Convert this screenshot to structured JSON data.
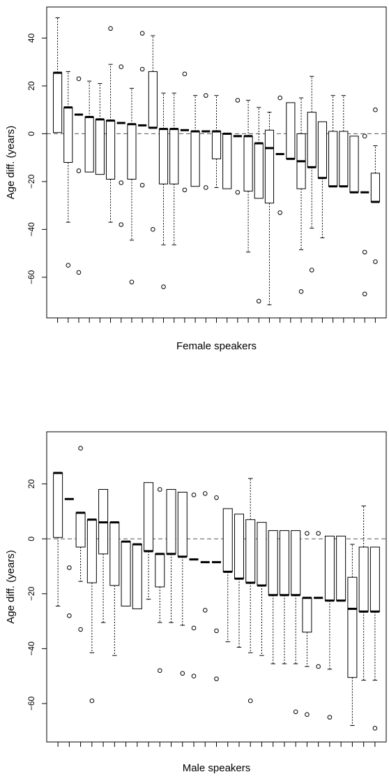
{
  "chart_data": [
    {
      "type": "boxplot",
      "xlabel": "Female speakers",
      "ylabel": "Age diff. (years)",
      "ylim": [
        -77,
        53
      ],
      "yticks": [
        -60,
        -40,
        -20,
        0,
        20,
        40
      ],
      "reference_line": 0,
      "grid": false,
      "boxes": [
        {
          "q1": 0.5,
          "median": 25.5,
          "q3": 25.5,
          "whisker_low": 0.5,
          "whisker_high": 48.5,
          "outliers": []
        },
        {
          "q1": -12,
          "median": 11,
          "q3": 11,
          "whisker_low": -37,
          "whisker_high": 26,
          "outliers": [
            -55
          ]
        },
        {
          "q1": 8,
          "median": 8,
          "q3": 8,
          "whisker_low": 8,
          "whisker_high": 8,
          "outliers": [
            23,
            -15.5,
            -58
          ]
        },
        {
          "q1": -16,
          "median": 7,
          "q3": 7,
          "whisker_low": -16,
          "whisker_high": 22,
          "outliers": []
        },
        {
          "q1": -17,
          "median": 6,
          "q3": 6,
          "whisker_low": -17,
          "whisker_high": 21,
          "outliers": []
        },
        {
          "q1": -19,
          "median": 5.5,
          "q3": 5.5,
          "whisker_low": -37,
          "whisker_high": 29,
          "outliers": [
            44
          ]
        },
        {
          "q1": 4.5,
          "median": 4.5,
          "q3": 4.5,
          "whisker_low": 4.5,
          "whisker_high": 4.5,
          "outliers": [
            28,
            -20.5,
            -38
          ]
        },
        {
          "q1": -19,
          "median": 4,
          "q3": 4,
          "whisker_low": -44.5,
          "whisker_high": 19,
          "outliers": [
            -62
          ]
        },
        {
          "q1": 3.5,
          "median": 3.5,
          "q3": 3.5,
          "whisker_low": 3.5,
          "whisker_high": 3.5,
          "outliers": [
            42,
            27,
            -21.5
          ]
        },
        {
          "q1": 2.5,
          "median": 2.5,
          "q3": 26,
          "whisker_low": 2.5,
          "whisker_high": 41,
          "outliers": [
            -40
          ]
        },
        {
          "q1": -21,
          "median": 2,
          "q3": 2,
          "whisker_low": -46.5,
          "whisker_high": 17,
          "outliers": [
            -64
          ]
        },
        {
          "q1": -21,
          "median": 2,
          "q3": 2,
          "whisker_low": -46.5,
          "whisker_high": 17,
          "outliers": []
        },
        {
          "q1": 1.5,
          "median": 1.5,
          "q3": 1.5,
          "whisker_low": 1.5,
          "whisker_high": 1.5,
          "outliers": [
            25,
            -23.5
          ]
        },
        {
          "q1": -22,
          "median": 1,
          "q3": 1,
          "whisker_low": -22,
          "whisker_high": 16,
          "outliers": []
        },
        {
          "q1": 1,
          "median": 1,
          "q3": 1,
          "whisker_low": 1,
          "whisker_high": 1,
          "outliers": [
            16,
            -22.5
          ]
        },
        {
          "q1": -10.5,
          "median": 1,
          "q3": 1,
          "whisker_low": -22.5,
          "whisker_high": 16,
          "outliers": []
        },
        {
          "q1": -23,
          "median": 0,
          "q3": 0,
          "whisker_low": -23,
          "whisker_high": 0,
          "outliers": []
        },
        {
          "q1": -1,
          "median": -1,
          "q3": -1,
          "whisker_low": -1,
          "whisker_high": -1,
          "outliers": [
            14,
            -24.5
          ]
        },
        {
          "q1": -24,
          "median": -1,
          "q3": -1,
          "whisker_low": -49.5,
          "whisker_high": 14,
          "outliers": []
        },
        {
          "q1": -27,
          "median": -4,
          "q3": -4,
          "whisker_low": -27,
          "whisker_high": 11,
          "outliers": [
            -70
          ]
        },
        {
          "q1": -29,
          "median": -6,
          "q3": 1.5,
          "whisker_low": -71.5,
          "whisker_high": 9,
          "outliers": []
        },
        {
          "q1": -8.5,
          "median": -8.5,
          "q3": -8.5,
          "whisker_low": -8.5,
          "whisker_high": -8.5,
          "outliers": [
            15,
            -33
          ]
        },
        {
          "q1": -10.5,
          "median": -10.5,
          "q3": 13,
          "whisker_low": -10.5,
          "whisker_high": 13,
          "outliers": []
        },
        {
          "q1": -23,
          "median": -11.5,
          "q3": 0,
          "whisker_low": -48.5,
          "whisker_high": 15,
          "outliers": [
            -66
          ]
        },
        {
          "q1": -14,
          "median": -14,
          "q3": 9,
          "whisker_low": -39.5,
          "whisker_high": 24,
          "outliers": [
            -57
          ]
        },
        {
          "q1": -18.5,
          "median": -18.5,
          "q3": 5,
          "whisker_low": -43.5,
          "whisker_high": 5,
          "outliers": []
        },
        {
          "q1": -22,
          "median": -22,
          "q3": 1,
          "whisker_low": -22,
          "whisker_high": 16,
          "outliers": []
        },
        {
          "q1": -22,
          "median": -22,
          "q3": 1,
          "whisker_low": -22,
          "whisker_high": 16,
          "outliers": []
        },
        {
          "q1": -24.5,
          "median": -24.5,
          "q3": -1,
          "whisker_low": -24.5,
          "whisker_high": -1,
          "outliers": []
        },
        {
          "q1": -24.5,
          "median": -24.5,
          "q3": -24.5,
          "whisker_low": -24.5,
          "whisker_high": -24.5,
          "outliers": [
            -1,
            -49.5,
            -67
          ]
        },
        {
          "q1": -28.5,
          "median": -28.5,
          "q3": -16.5,
          "whisker_low": -28.5,
          "whisker_high": -5,
          "outliers": [
            10,
            -53.5
          ]
        }
      ]
    },
    {
      "type": "boxplot",
      "xlabel": "Male speakers",
      "ylabel": "Age diff. (years)",
      "ylim": [
        -74,
        39
      ],
      "yticks": [
        -60,
        -40,
        -20,
        0,
        20
      ],
      "reference_line": 0,
      "grid": false,
      "boxes": [
        {
          "q1": 0.5,
          "median": 24,
          "q3": 24,
          "whisker_low": -24.5,
          "whisker_high": 24,
          "outliers": []
        },
        {
          "q1": 14.5,
          "median": 14.5,
          "q3": 14.5,
          "whisker_low": 14.5,
          "whisker_high": 14.5,
          "outliers": [
            -10.5,
            -28
          ]
        },
        {
          "q1": -3,
          "median": 9.5,
          "q3": 9.5,
          "whisker_low": -15.5,
          "whisker_high": 9.5,
          "outliers": [
            33,
            -33
          ]
        },
        {
          "q1": -16,
          "median": 7,
          "q3": 7,
          "whisker_low": -41.5,
          "whisker_high": 7,
          "outliers": [
            -59
          ]
        },
        {
          "q1": -5.5,
          "median": 6,
          "q3": 18,
          "whisker_low": -30.5,
          "whisker_high": 18,
          "outliers": []
        },
        {
          "q1": -17,
          "median": 6,
          "q3": 6,
          "whisker_low": -42.5,
          "whisker_high": 6,
          "outliers": []
        },
        {
          "q1": -24.5,
          "median": -1,
          "q3": -1,
          "whisker_low": -24.5,
          "whisker_high": -1,
          "outliers": []
        },
        {
          "q1": -25.5,
          "median": -2,
          "q3": -2,
          "whisker_low": -25.5,
          "whisker_high": -2,
          "outliers": []
        },
        {
          "q1": -4.5,
          "median": -4.5,
          "q3": 20.5,
          "whisker_low": -22,
          "whisker_high": 20.5,
          "outliers": []
        },
        {
          "q1": -17.5,
          "median": -5.5,
          "q3": -5.5,
          "whisker_low": -30.5,
          "whisker_high": -5.5,
          "outliers": [
            18,
            -48
          ]
        },
        {
          "q1": -5.5,
          "median": -5.5,
          "q3": 18,
          "whisker_low": -30.5,
          "whisker_high": 18,
          "outliers": []
        },
        {
          "q1": -6.5,
          "median": -6.5,
          "q3": 17,
          "whisker_low": -31.5,
          "whisker_high": 17,
          "outliers": [
            -49
          ]
        },
        {
          "q1": -7.5,
          "median": -7.5,
          "q3": -7.5,
          "whisker_low": -7.5,
          "whisker_high": -7.5,
          "outliers": [
            16,
            -32.5,
            -50
          ]
        },
        {
          "q1": -8.5,
          "median": -8.5,
          "q3": -8.5,
          "whisker_low": -8.5,
          "whisker_high": -8.5,
          "outliers": [
            16.5,
            -26
          ]
        },
        {
          "q1": -8.5,
          "median": -8.5,
          "q3": -8.5,
          "whisker_low": -8.5,
          "whisker_high": -8.5,
          "outliers": [
            15,
            -33.5,
            -51
          ]
        },
        {
          "q1": -12,
          "median": -12,
          "q3": 11,
          "whisker_low": -37.5,
          "whisker_high": 11,
          "outliers": []
        },
        {
          "q1": -14.5,
          "median": -14.5,
          "q3": 9,
          "whisker_low": -39.5,
          "whisker_high": 9,
          "outliers": []
        },
        {
          "q1": -16,
          "median": -16,
          "q3": 7,
          "whisker_low": -41.5,
          "whisker_high": 22,
          "outliers": [
            -59
          ]
        },
        {
          "q1": -17,
          "median": -17,
          "q3": 6,
          "whisker_low": -42.5,
          "whisker_high": 6,
          "outliers": []
        },
        {
          "q1": -20.5,
          "median": -20.5,
          "q3": 3,
          "whisker_low": -45.5,
          "whisker_high": 3,
          "outliers": []
        },
        {
          "q1": -20.5,
          "median": -20.5,
          "q3": 3,
          "whisker_low": -45.5,
          "whisker_high": 3,
          "outliers": []
        },
        {
          "q1": -20.5,
          "median": -20.5,
          "q3": 3,
          "whisker_low": -45.5,
          "whisker_high": 3,
          "outliers": [
            -63
          ]
        },
        {
          "q1": -34,
          "median": -21.5,
          "q3": -21.5,
          "whisker_low": -46.5,
          "whisker_high": -21.5,
          "outliers": [
            2,
            -64
          ]
        },
        {
          "q1": -21.5,
          "median": -21.5,
          "q3": -21.5,
          "whisker_low": -21.5,
          "whisker_high": -21.5,
          "outliers": [
            2,
            -46.5
          ]
        },
        {
          "q1": -22.5,
          "median": -22.5,
          "q3": 1,
          "whisker_low": -47.5,
          "whisker_high": 1,
          "outliers": [
            -65
          ]
        },
        {
          "q1": -22.5,
          "median": -22.5,
          "q3": 1,
          "whisker_low": -22.5,
          "whisker_high": 1,
          "outliers": []
        },
        {
          "q1": -50.5,
          "median": -25.5,
          "q3": -14,
          "whisker_low": -68,
          "whisker_high": -2,
          "outliers": []
        },
        {
          "q1": -26.5,
          "median": -26.5,
          "q3": -3,
          "whisker_low": -51.5,
          "whisker_high": 12,
          "outliers": []
        },
        {
          "q1": -26.5,
          "median": -26.5,
          "q3": -3,
          "whisker_low": -51.5,
          "whisker_high": -3,
          "outliers": [
            -69
          ]
        }
      ]
    }
  ]
}
